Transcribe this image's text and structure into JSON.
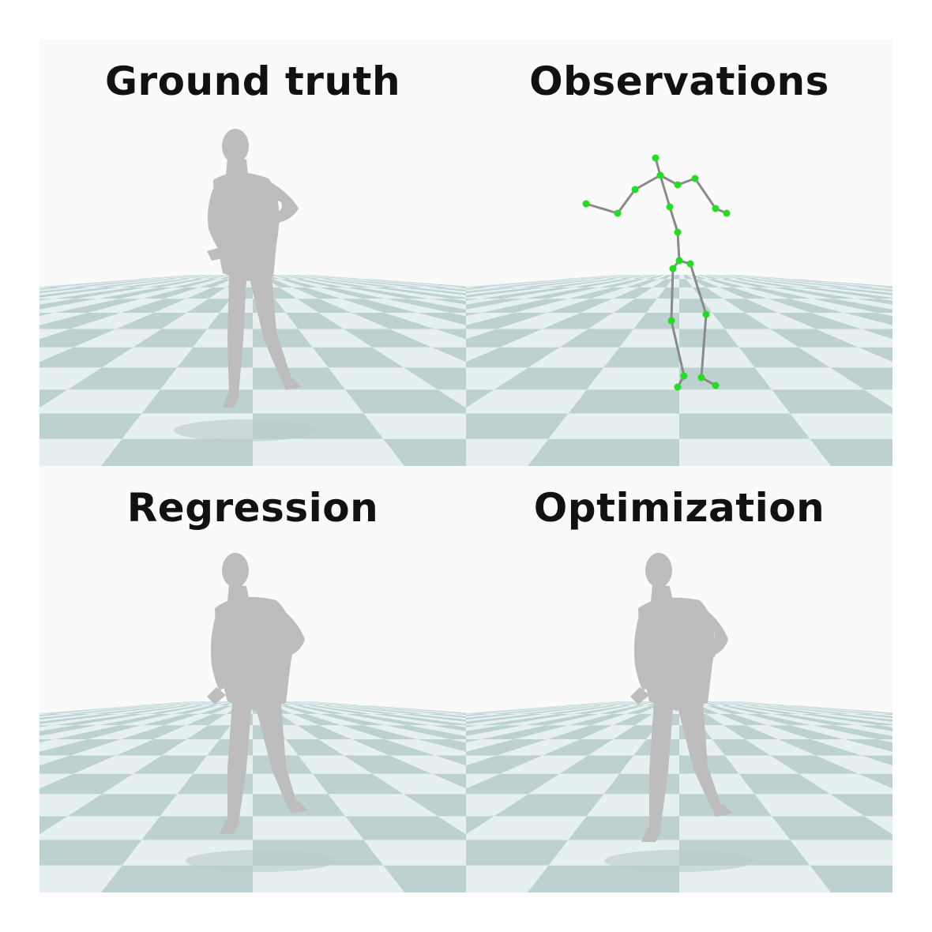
{
  "panels": [
    {
      "id": "ground-truth",
      "title": "Ground truth",
      "content": "body-mesh"
    },
    {
      "id": "observations",
      "title": "Observations",
      "content": "skeleton"
    },
    {
      "id": "regression",
      "title": "Regression",
      "content": "body-mesh"
    },
    {
      "id": "optimization",
      "title": "Optimization",
      "content": "body-mesh"
    }
  ],
  "colors": {
    "background": "#fafafa",
    "floor_light": "#e6f0f0",
    "floor_dark": "#bdd1d1",
    "body": "#bdbdbd",
    "joint": "#22dd22",
    "bone": "#8a8a8a",
    "title": "#111111"
  }
}
